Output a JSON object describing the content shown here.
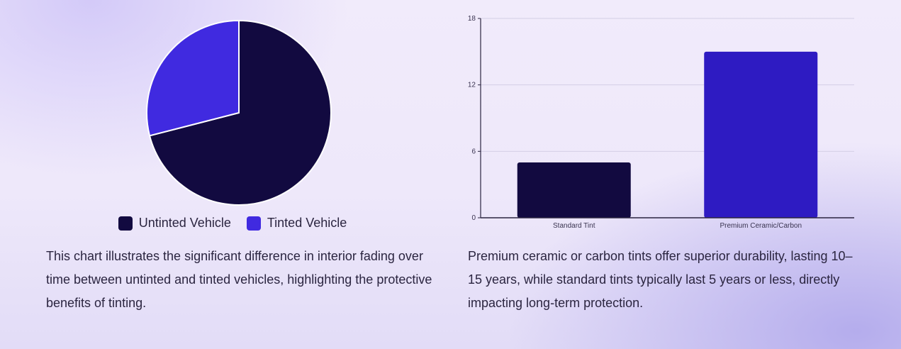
{
  "colors": {
    "dark": "#120a40",
    "violet": "#402ae0",
    "bar_dark": "#120a40",
    "bar_violet": "#2e1bc2"
  },
  "pie": {
    "legend": [
      "Untinted Vehicle",
      "Tinted Vehicle"
    ],
    "caption": "This chart illustrates the significant difference in interior fading over time between untinted and tinted vehicles, highlighting the protective benefits of tinting."
  },
  "bar": {
    "caption": "Premium ceramic or carbon tints offer superior durability, lasting 10–15 years, while standard tints typically last 5 years or less, directly impacting long-term protection."
  },
  "chart_data": [
    {
      "type": "pie",
      "title": "",
      "labels": [
        "Untinted Vehicle",
        "Tinted Vehicle"
      ],
      "values": [
        71,
        29
      ],
      "legend": "bottom"
    },
    {
      "type": "bar",
      "title": "",
      "xlabel": "",
      "ylabel": "",
      "categories": [
        "Standard Tint",
        "Premium Ceramic/Carbon"
      ],
      "values": [
        5,
        15
      ],
      "yticks": [
        0,
        6,
        12,
        18
      ],
      "ylim": [
        0,
        18
      ],
      "grid": true,
      "legend": "none"
    }
  ]
}
